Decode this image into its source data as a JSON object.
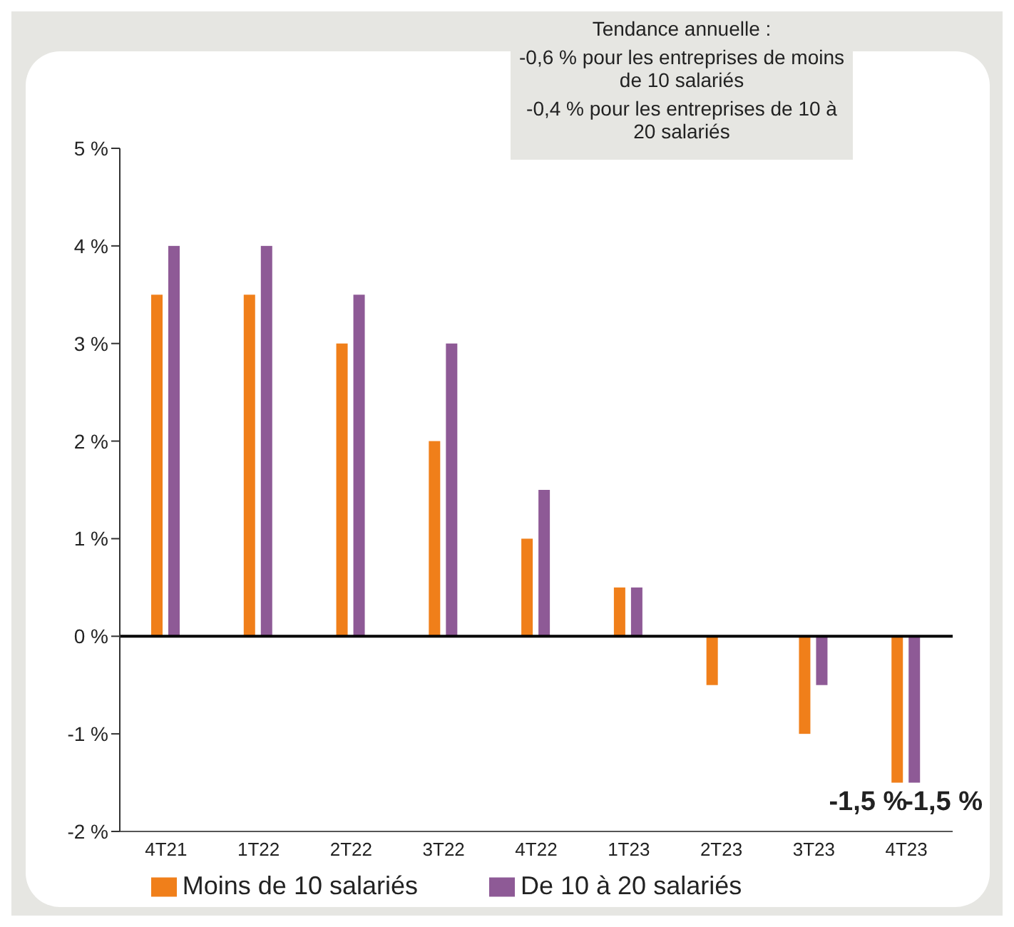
{
  "chart_data": {
    "type": "bar",
    "categories": [
      "4T21",
      "1T22",
      "2T22",
      "3T22",
      "4T22",
      "1T23",
      "2T23",
      "3T23",
      "4T23"
    ],
    "series": [
      {
        "name": "Moins de 10 salariés",
        "color": "#f07f1a",
        "values": [
          3.5,
          3.5,
          3,
          2,
          1,
          0.5,
          -0.5,
          -1,
          -1.5
        ],
        "value_labels": [
          null,
          null,
          null,
          null,
          null,
          null,
          null,
          null,
          "-1,5 %"
        ]
      },
      {
        "name": "De 10 à 20 salariés",
        "color": "#8e5a96",
        "values": [
          4,
          4,
          3.5,
          3,
          1.5,
          0.5,
          0,
          -0.5,
          -1.5
        ],
        "value_labels": [
          null,
          null,
          null,
          null,
          null,
          null,
          null,
          null,
          "-1,5 %"
        ]
      }
    ],
    "ylim": [
      -2,
      5
    ],
    "yticks": [
      {
        "value": -2,
        "label": "-2 %"
      },
      {
        "value": -1,
        "label": "-1 %"
      },
      {
        "value": 0,
        "label": "0 %"
      },
      {
        "value": 1,
        "label": "1 %"
      },
      {
        "value": 2,
        "label": "2 %"
      },
      {
        "value": 3,
        "label": "3 %"
      },
      {
        "value": 4,
        "label": "4 %"
      },
      {
        "value": 5,
        "label": "5 %"
      }
    ],
    "ref_lines": [
      {
        "axis": "y",
        "value": 0,
        "color": "#000000"
      }
    ],
    "grid": false,
    "legend": "bottom",
    "annotations": [
      "Tendance annuelle :",
      "-0,6 % pour les entreprises de moins de 10 salariés",
      "-0,4 % pour les entreprises de 10 à 20 salariés"
    ]
  }
}
